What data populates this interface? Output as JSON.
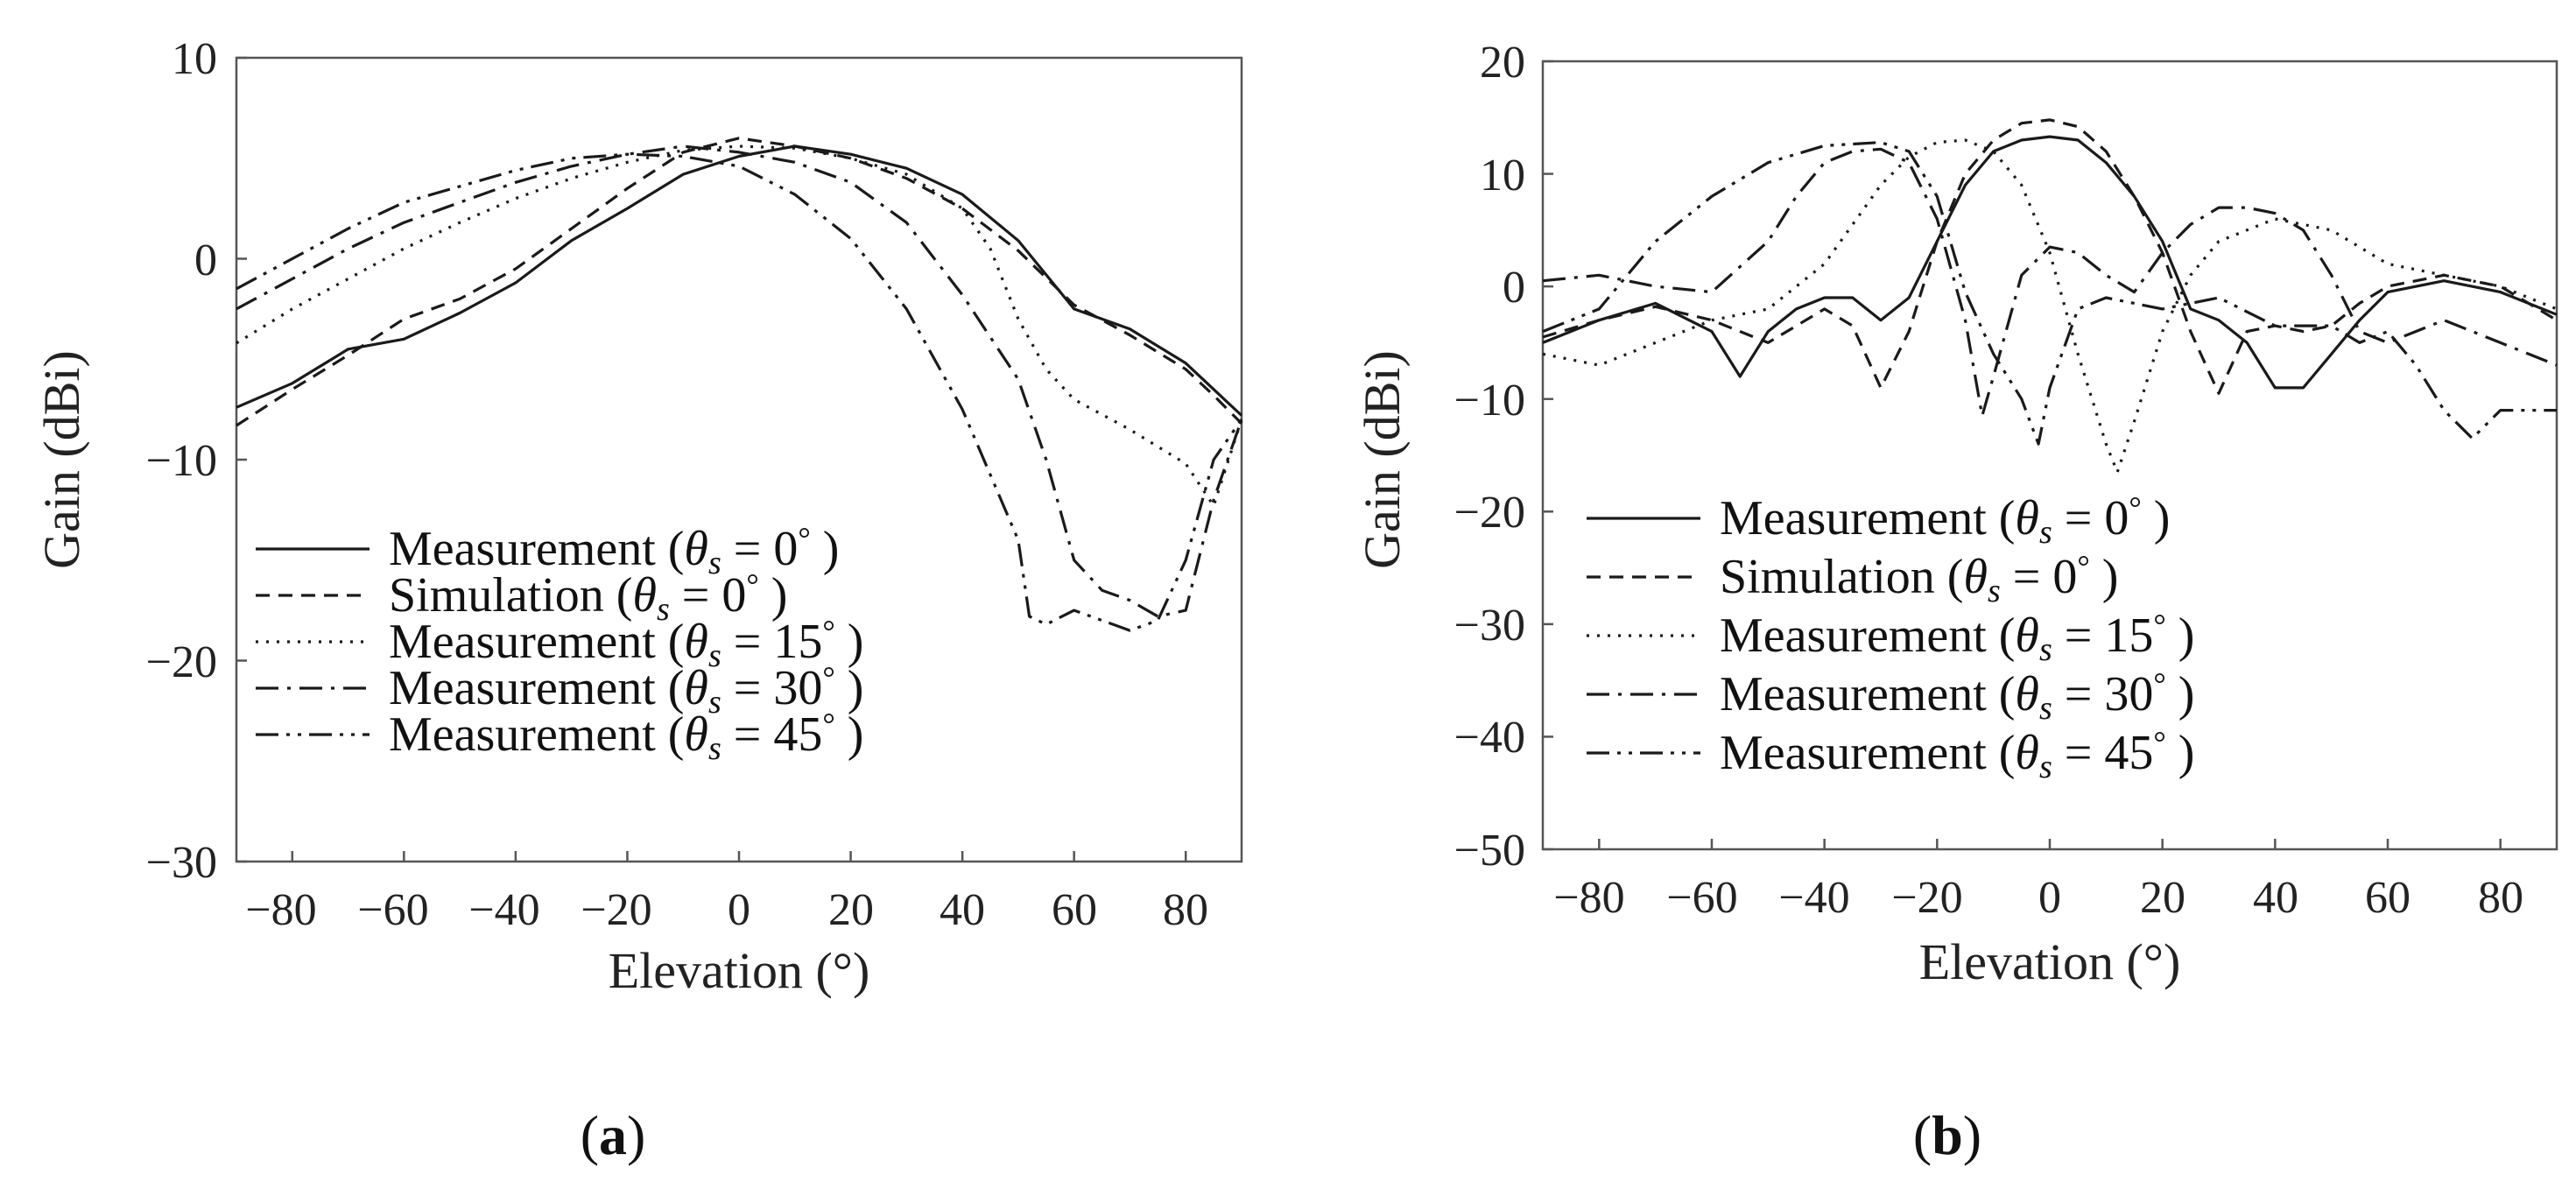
{
  "figure": {
    "panel_labels": [
      {
        "open": "(",
        "letter": "a",
        "close": ")"
      },
      {
        "open": "(",
        "letter": "b",
        "close": ")"
      }
    ]
  },
  "legend_entries": [
    {
      "label": "Measurement (",
      "theta": "θ",
      "sub": "s",
      "eq": " = 0",
      "deg": "°",
      "close": " )",
      "dash": "solid"
    },
    {
      "label": "Simulation (",
      "theta": "θ",
      "sub": "s",
      "eq": " = 0",
      "deg": "°",
      "close": " )",
      "dash": "dashed"
    },
    {
      "label": "Measurement (",
      "theta": "θ",
      "sub": "s",
      "eq": " = 15",
      "deg": "°",
      "close": " )",
      "dash": "dotted"
    },
    {
      "label": "Measurement (",
      "theta": "θ",
      "sub": "s",
      "eq": " = 30",
      "deg": "°",
      "close": " )",
      "dash": "dashdot"
    },
    {
      "label": "Measurement (",
      "theta": "θ",
      "sub": "s",
      "eq": " = 45",
      "deg": "°",
      "close": " )",
      "dash": "dashdotdot"
    }
  ],
  "chart_data": [
    {
      "type": "line",
      "panel": "a",
      "xlabel": "Elevation (°)",
      "ylabel": "Gain (dBi)",
      "xlim": [
        -90,
        90
      ],
      "ylim": [
        -30,
        10
      ],
      "x_ticks": [
        -80,
        -60,
        -40,
        -20,
        0,
        20,
        40,
        60,
        80
      ],
      "x_tick_labels": [
        "−80",
        "−60",
        "−40",
        "−20",
        "0",
        "20",
        "40",
        "60",
        "80"
      ],
      "y_ticks": [
        10,
        0,
        -10,
        -20,
        -30
      ],
      "y_tick_labels": [
        "10",
        "0",
        "−10",
        "−20",
        "−30"
      ],
      "legend_position": "lower-left",
      "series": [
        {
          "name": "Measurement (θs = 0°)",
          "x": [
            -90,
            -80,
            -70,
            -60,
            -50,
            -40,
            -30,
            -20,
            -10,
            0,
            10,
            20,
            30,
            40,
            50,
            60,
            70,
            80,
            85,
            90
          ],
          "y": [
            -7.4,
            -6.2,
            -4.5,
            -4,
            -2.7,
            -1.2,
            0.9,
            2.5,
            4.2,
            5.1,
            5.6,
            5.2,
            4.5,
            3.2,
            0.9,
            -2.5,
            -3.5,
            -5.2,
            -6.5,
            -7.8
          ]
        },
        {
          "name": "Simulation (θs = 0°)",
          "x": [
            -90,
            -80,
            -70,
            -60,
            -50,
            -40,
            -30,
            -20,
            -10,
            0,
            10,
            20,
            30,
            40,
            50,
            60,
            70,
            80,
            85,
            90
          ],
          "y": [
            -8.3,
            -6.5,
            -4.8,
            -3,
            -2,
            -0.5,
            1.5,
            3.5,
            5.3,
            6,
            5.6,
            5,
            4,
            2.5,
            0.4,
            -2.3,
            -3.8,
            -5.5,
            -6.8,
            -8.2
          ]
        },
        {
          "name": "Measurement (θs = 15°)",
          "x": [
            -90,
            -80,
            -70,
            -60,
            -50,
            -40,
            -30,
            -20,
            -10,
            0,
            10,
            20,
            30,
            40,
            45,
            50,
            55,
            60,
            70,
            80,
            85,
            90
          ],
          "y": [
            -4.2,
            -2.5,
            -1,
            0.5,
            1.8,
            3,
            4,
            4.8,
            5.4,
            5.6,
            5.5,
            5,
            4.2,
            2.5,
            0.5,
            -3,
            -5.5,
            -7,
            -8.5,
            -10.2,
            -12.3,
            -8
          ]
        },
        {
          "name": "Measurement (θs = 30°)",
          "x": [
            -90,
            -80,
            -70,
            -60,
            -50,
            -40,
            -30,
            -20,
            -10,
            0,
            10,
            20,
            30,
            40,
            50,
            55,
            60,
            65,
            70,
            75,
            80,
            85,
            90
          ],
          "y": [
            -2.5,
            -1,
            0.5,
            1.8,
            2.8,
            3.8,
            4.6,
            5.2,
            5.6,
            5.3,
            4.8,
            3.8,
            1.8,
            -1.8,
            -6,
            -10,
            -15,
            -16.5,
            -17,
            -17.8,
            -17.5,
            -12,
            -8
          ]
        },
        {
          "name": "Measurement (θs = 45°)",
          "x": [
            -90,
            -80,
            -70,
            -60,
            -50,
            -40,
            -30,
            -20,
            -10,
            0,
            10,
            20,
            30,
            40,
            50,
            52,
            55,
            60,
            65,
            70,
            75,
            80,
            85,
            90
          ],
          "y": [
            -1.5,
            0,
            1.5,
            2.8,
            3.6,
            4.4,
            5,
            5.2,
            5.1,
            4.6,
            3.2,
            1,
            -2.5,
            -7.5,
            -14,
            -17.8,
            -18.2,
            -17.5,
            -18,
            -18.5,
            -18,
            -15,
            -10,
            -8
          ]
        }
      ]
    },
    {
      "type": "line",
      "panel": "b",
      "xlabel": "Elevation (°)",
      "ylabel": "Gain (dBi)",
      "xlim": [
        -90,
        90
      ],
      "ylim": [
        -50,
        20
      ],
      "x_ticks": [
        -80,
        -60,
        -40,
        -20,
        0,
        20,
        40,
        60,
        80
      ],
      "x_tick_labels": [
        "−80",
        "−60",
        "−40",
        "−20",
        "0",
        "20",
        "40",
        "60",
        "80"
      ],
      "y_ticks": [
        20,
        10,
        0,
        -10,
        -20,
        -30,
        -40,
        -50
      ],
      "y_tick_labels": [
        "20",
        "10",
        "0",
        "−10",
        "−20",
        "−30",
        "−40",
        "−50"
      ],
      "legend_position": "lower-left",
      "series": [
        {
          "name": "Measurement (θs = 0°)",
          "x": [
            -90,
            -80,
            -70,
            -60,
            -55,
            -50,
            -45,
            -40,
            -35,
            -30,
            -25,
            -20,
            -15,
            -10,
            -5,
            0,
            5,
            10,
            15,
            20,
            25,
            30,
            35,
            40,
            45,
            50,
            55,
            60,
            70,
            80,
            90
          ],
          "y": [
            -5,
            -3,
            -1.5,
            -4,
            -8,
            -4,
            -2,
            -1,
            -1,
            -3,
            -1,
            4,
            9,
            12,
            13,
            13.3,
            13,
            11,
            8,
            4,
            -2,
            -3,
            -5,
            -9,
            -9,
            -6,
            -3,
            -0.5,
            0.5,
            -0.5,
            -2.5
          ]
        },
        {
          "name": "Simulation (θs = 0°)",
          "x": [
            -90,
            -80,
            -70,
            -60,
            -50,
            -40,
            -35,
            -30,
            -25,
            -20,
            -15,
            -10,
            -5,
            0,
            5,
            10,
            15,
            20,
            25,
            30,
            35,
            40,
            45,
            50,
            55,
            60,
            70,
            80,
            90
          ],
          "y": [
            -4.5,
            -3,
            -1.8,
            -3,
            -5,
            -2,
            -3.5,
            -9,
            -4,
            4,
            10,
            13,
            14.5,
            14.8,
            14.2,
            12,
            8,
            3,
            -4,
            -9.5,
            -4,
            -3.5,
            -4,
            -3.5,
            -1.5,
            0,
            1,
            0,
            -3
          ]
        },
        {
          "name": "Measurement (θs = 15°)",
          "x": [
            -90,
            -80,
            -70,
            -60,
            -50,
            -40,
            -30,
            -25,
            -20,
            -15,
            -10,
            -5,
            0,
            5,
            10,
            12,
            15,
            20,
            25,
            30,
            40,
            50,
            60,
            70,
            80,
            90
          ],
          "y": [
            -6,
            -7,
            -5,
            -3,
            -2,
            2,
            9,
            11.5,
            12.8,
            13,
            12,
            9,
            3,
            -6,
            -14,
            -16.5,
            -12,
            -4,
            1,
            4,
            6,
            5,
            2,
            1,
            0,
            -2
          ]
        },
        {
          "name": "Measurement (θs = 30°)",
          "x": [
            -90,
            -80,
            -70,
            -60,
            -50,
            -45,
            -40,
            -35,
            -30,
            -25,
            -20,
            -15,
            -12,
            -10,
            -5,
            0,
            5,
            10,
            15,
            20,
            25,
            30,
            35,
            40,
            45,
            50,
            55,
            60,
            70,
            80,
            90
          ],
          "y": [
            0.5,
            1,
            0,
            -0.5,
            4,
            8,
            11,
            12,
            12.2,
            11,
            6,
            -3,
            -11.5,
            -8,
            1,
            3.5,
            3,
            1,
            -0.5,
            3,
            5.5,
            7,
            7,
            6.5,
            5,
            1,
            -4,
            -5,
            -3,
            -5,
            -7
          ]
        },
        {
          "name": "Measurement (θs = 45°)",
          "x": [
            -90,
            -80,
            -70,
            -60,
            -50,
            -40,
            -30,
            -25,
            -20,
            -15,
            -10,
            -5,
            -2,
            0,
            5,
            10,
            20,
            30,
            40,
            50,
            55,
            60,
            65,
            70,
            75,
            80,
            85,
            90
          ],
          "y": [
            -4,
            -2,
            4,
            8,
            11,
            12.5,
            12.8,
            12,
            8,
            -0.5,
            -6,
            -10,
            -14,
            -9,
            -2,
            -1,
            -2,
            -1,
            -3.5,
            -3.5,
            -5,
            -4,
            -7,
            -11,
            -13.5,
            -11,
            -11,
            -11
          ]
        }
      ]
    }
  ]
}
